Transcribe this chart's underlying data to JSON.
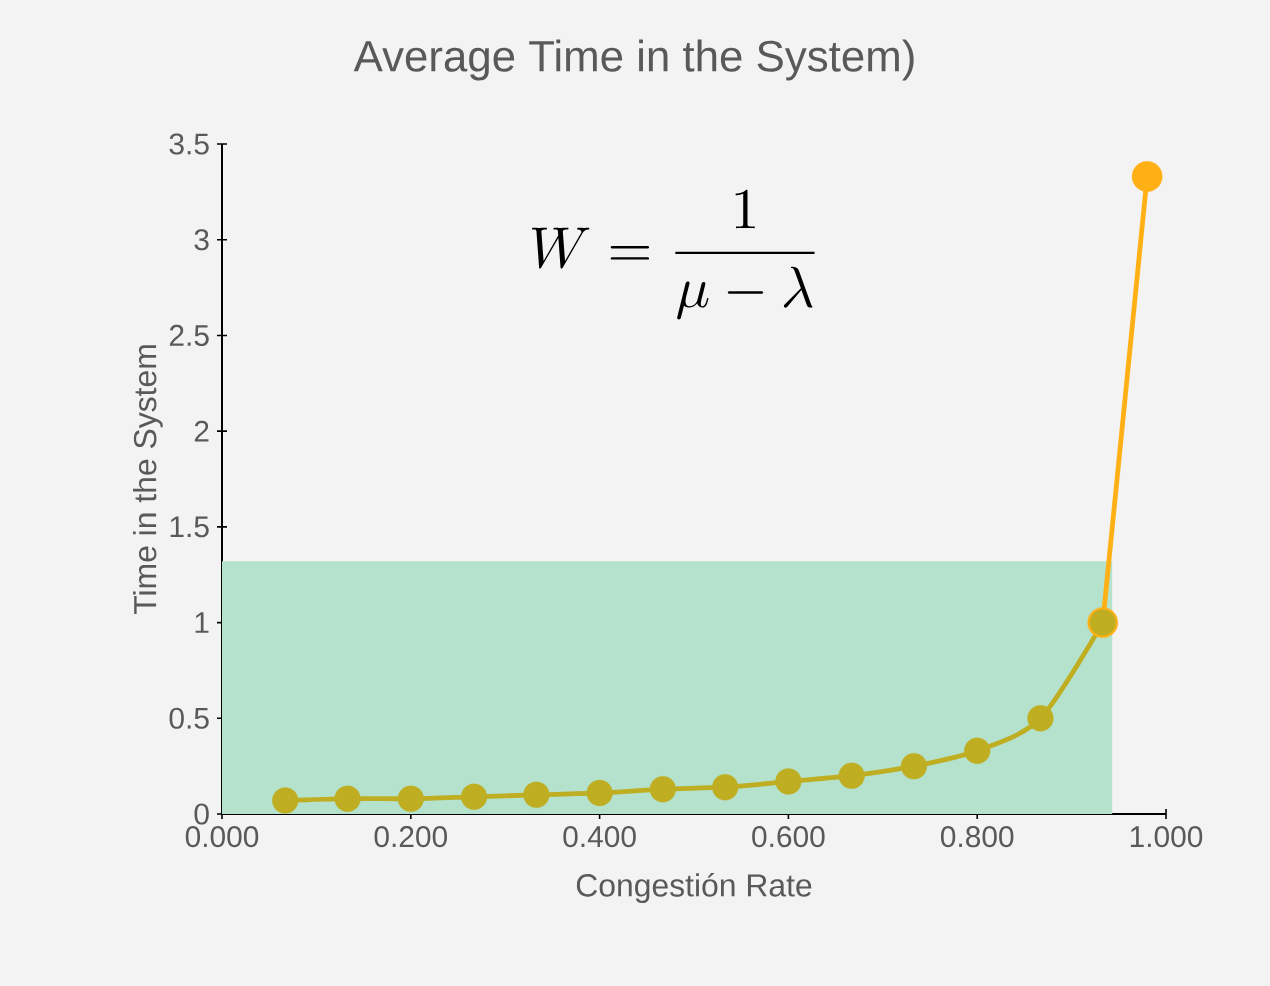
{
  "chart_data": {
    "type": "line",
    "title": "Average Time in the System)",
    "xlabel": "Congestión Rate",
    "ylabel": "Time in the System",
    "xlim": [
      0,
      1
    ],
    "ylim": [
      0,
      3.5
    ],
    "xticks": [
      {
        "value": 0,
        "label": "0.000"
      },
      {
        "value": 0.2,
        "label": "0.200"
      },
      {
        "value": 0.4,
        "label": "0.400"
      },
      {
        "value": 0.6,
        "label": "0.600"
      },
      {
        "value": 0.8,
        "label": "0.800"
      },
      {
        "value": 1,
        "label": "1.000"
      }
    ],
    "yticks": [
      0,
      0.5,
      1,
      1.5,
      2,
      2.5,
      3,
      3.5
    ],
    "series": [
      {
        "type": "area",
        "color": "#b4e2cc",
        "x": [
          0,
          0.943
        ],
        "values": [
          1.32,
          1.32
        ]
      },
      {
        "color": "#ffb014",
        "marker": "circle",
        "x": [
          0.933,
          0.98
        ],
        "values": [
          1.0,
          3.33
        ]
      },
      {
        "color": "#c0ae22",
        "marker": "circle",
        "x": [
          0.067,
          0.133,
          0.2,
          0.267,
          0.333,
          0.4,
          0.467,
          0.533,
          0.6,
          0.667,
          0.733,
          0.8,
          0.867,
          0.933
        ],
        "values": [
          0.07,
          0.08,
          0.08,
          0.09,
          0.1,
          0.11,
          0.13,
          0.14,
          0.17,
          0.2,
          0.25,
          0.33,
          0.5,
          1.0
        ]
      }
    ],
    "annotations": [
      "W = \\frac{1}{\\mu - \\lambda}"
    ],
    "grid": false
  }
}
